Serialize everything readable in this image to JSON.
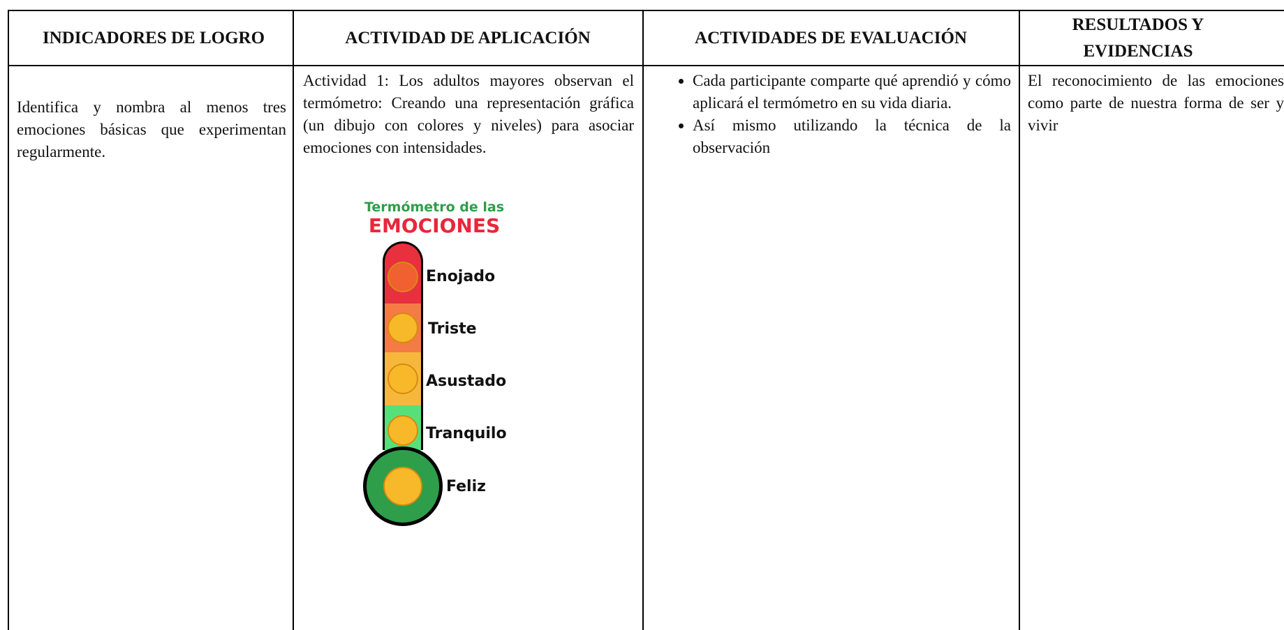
{
  "table": {
    "headers": [
      "INDICADORES DE LOGRO",
      "ACTIVIDAD DE APLICACIÓN",
      "ACTIVIDADES DE EVALUACIÓN",
      "RESULTADOS Y EVIDENCIAS"
    ],
    "rows": [
      [
        "Identifica y nombra al menos tres emociones básicas que experimentan regularmente.",
        "Actividad 1: Los adultos mayores observan el termómetro: Creando una representación gráfica (un dibujo con colores y niveles) para asociar emociones con intensidades.",
        [
          "Cada participante comparte qué aprendió y cómo aplicará el termómetro en su vida diaria.",
          "Así mismo utilizando la técnica de la observación"
        ],
        "El reconocimiento de las emociones como parte de nuestra forma de ser y vivir"
      ]
    ]
  },
  "thermometer": {
    "title": "Termómetro de las",
    "heading": "EMOCIONES",
    "levels": [
      "Enojado",
      "Triste",
      "Asustado",
      "Tranquilo",
      "Feliz"
    ]
  }
}
